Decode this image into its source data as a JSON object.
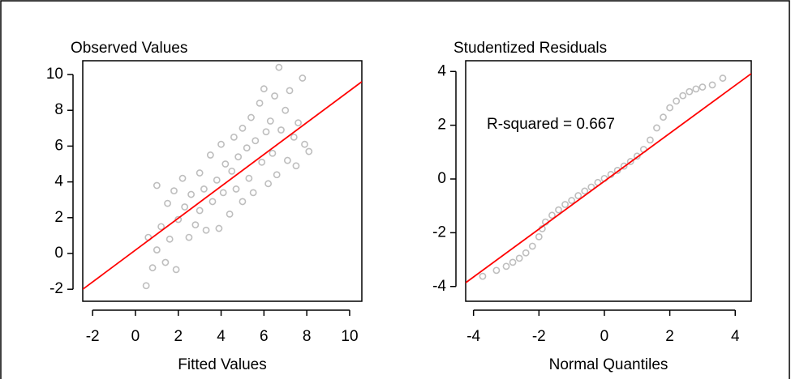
{
  "chart_data": [
    {
      "type": "scatter",
      "title": "Observed Values",
      "x_label": "Fitted Values",
      "color": "#bebebe",
      "x": [
        0.5,
        0.6,
        0.8,
        1.0,
        1.0,
        1.2,
        1.4,
        1.5,
        1.6,
        1.8,
        1.9,
        2.0,
        2.2,
        2.3,
        2.5,
        2.6,
        2.8,
        3.0,
        3.0,
        3.2,
        3.3,
        3.5,
        3.6,
        3.8,
        3.9,
        4.0,
        4.1,
        4.2,
        4.4,
        4.5,
        4.6,
        4.7,
        4.8,
        5.0,
        5.0,
        5.2,
        5.3,
        5.4,
        5.5,
        5.6,
        5.8,
        5.9,
        6.0,
        6.1,
        6.2,
        6.3,
        6.4,
        6.5,
        6.6,
        6.7,
        6.8,
        7.0,
        7.1,
        7.2,
        7.4,
        7.5,
        7.6,
        7.8,
        7.9,
        8.1
      ],
      "y": [
        -1.8,
        0.9,
        -0.8,
        0.2,
        3.8,
        1.5,
        -0.5,
        2.8,
        0.8,
        3.5,
        -0.9,
        1.9,
        4.2,
        2.6,
        0.9,
        3.3,
        1.6,
        4.5,
        2.4,
        3.6,
        1.3,
        5.5,
        2.9,
        4.1,
        1.4,
        6.1,
        3.4,
        5.0,
        2.2,
        4.6,
        6.5,
        3.6,
        5.4,
        7.0,
        2.9,
        5.9,
        4.2,
        7.6,
        3.4,
        6.3,
        8.4,
        5.1,
        9.2,
        6.8,
        3.9,
        7.4,
        5.6,
        8.8,
        4.4,
        10.4,
        6.9,
        8.0,
        5.2,
        9.1,
        6.5,
        4.9,
        7.3,
        9.8,
        6.1,
        5.7
      ],
      "line": {
        "x": [
          -2.46,
          10.57
        ],
        "y": [
          -2.0,
          9.6
        ],
        "color": "#ff0000"
      },
      "xlim": [
        -2.46,
        10.57
      ],
      "ylim": [
        -2.67,
        10.77
      ],
      "xticks": [
        -2,
        0,
        2,
        4,
        6,
        8,
        10
      ],
      "yticks": [
        -2,
        0,
        2,
        4,
        6,
        8,
        10
      ]
    },
    {
      "type": "scatter",
      "title": "Studentized Residuals",
      "x_label": "Normal Quantiles",
      "color": "#bebebe",
      "annotation": "R-squared = 0.667",
      "x": [
        -3.72,
        -3.3,
        -3.0,
        -2.8,
        -2.6,
        -2.4,
        -2.2,
        -2.0,
        -1.9,
        -1.8,
        -1.6,
        -1.4,
        -1.2,
        -1.0,
        -0.8,
        -0.6,
        -0.4,
        -0.2,
        0,
        0.2,
        0.4,
        0.6,
        0.8,
        1.0,
        1.2,
        1.4,
        1.6,
        1.8,
        2.0,
        2.2,
        2.4,
        2.6,
        2.8,
        3.0,
        3.3,
        3.62
      ],
      "y": [
        -3.62,
        -3.4,
        -3.25,
        -3.1,
        -2.95,
        -2.75,
        -2.5,
        -2.15,
        -1.85,
        -1.6,
        -1.35,
        -1.15,
        -0.95,
        -0.8,
        -0.62,
        -0.45,
        -0.3,
        -0.13,
        0.02,
        0.17,
        0.32,
        0.48,
        0.65,
        0.85,
        1.1,
        1.45,
        1.9,
        2.3,
        2.65,
        2.9,
        3.1,
        3.25,
        3.35,
        3.42,
        3.5,
        3.75
      ],
      "line": {
        "x": [
          -4.24,
          4.49
        ],
        "y": [
          -3.86,
          3.92
        ],
        "color": "#ff0000"
      },
      "xlim": [
        -4.24,
        4.49
      ],
      "ylim": [
        -4.55,
        4.4
      ],
      "xticks": [
        -4,
        -2,
        0,
        2,
        4
      ],
      "yticks": [
        -4,
        -2,
        0,
        2,
        4
      ]
    }
  ]
}
